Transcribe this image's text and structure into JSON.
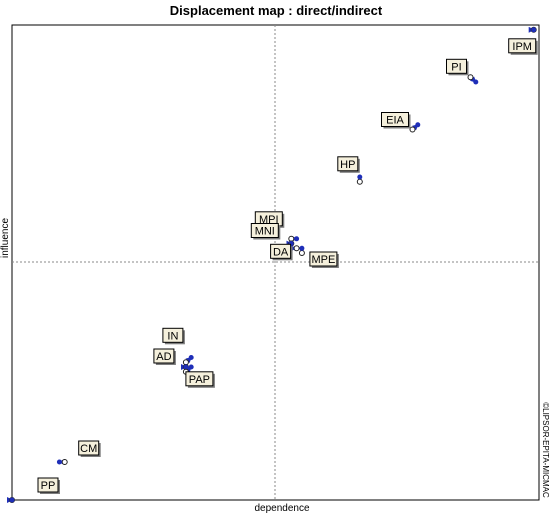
{
  "colors": {
    "frame": "#000000",
    "quadrant_lines": "#888888",
    "arrow": "#1f2fb8",
    "direct_point": "#222222",
    "label_fill": "#f5f0dc",
    "label_border": "#000000"
  },
  "chart_data": {
    "type": "scatter",
    "title": "Displacement map :  direct/indirect",
    "xlabel": "dependence",
    "ylabel": "influence",
    "watermark": "©LIPSOR-EPITA-MICMAC",
    "xlim": [
      0,
      100
    ],
    "ylim": [
      0,
      100
    ],
    "axis_ticks": false,
    "grid": false,
    "points": [
      {
        "label": "IPM",
        "direct": [
          99,
          99
        ],
        "indirect": [
          99,
          99
        ]
      },
      {
        "label": "PI",
        "direct": [
          87,
          89
        ],
        "indirect": [
          88,
          88
        ]
      },
      {
        "label": "EIA",
        "direct": [
          76,
          78
        ],
        "indirect": [
          77,
          79
        ]
      },
      {
        "label": "HP",
        "direct": [
          66,
          67
        ],
        "indirect": [
          66,
          68
        ]
      },
      {
        "label": "MPI",
        "direct": [
          53,
          55
        ],
        "indirect": [
          54,
          55
        ]
      },
      {
        "label": "MNI",
        "direct": [
          53,
          54
        ],
        "indirect": [
          53,
          54
        ]
      },
      {
        "label": "DA",
        "direct": [
          54,
          53
        ],
        "indirect": [
          53,
          53
        ]
      },
      {
        "label": "MPE",
        "direct": [
          55,
          52
        ],
        "indirect": [
          55,
          53
        ]
      },
      {
        "label": "IN",
        "direct": [
          33,
          29
        ],
        "indirect": [
          34,
          30
        ]
      },
      {
        "label": "AD",
        "direct": [
          33,
          28
        ],
        "indirect": [
          33,
          28
        ]
      },
      {
        "label": "PAP",
        "direct": [
          33,
          27
        ],
        "indirect": [
          34,
          28
        ]
      },
      {
        "label": "CM",
        "direct": [
          10,
          8
        ],
        "indirect": [
          9,
          8
        ]
      },
      {
        "label": "PP",
        "direct": [
          0,
          0
        ],
        "indirect": [
          0,
          0
        ]
      }
    ]
  }
}
